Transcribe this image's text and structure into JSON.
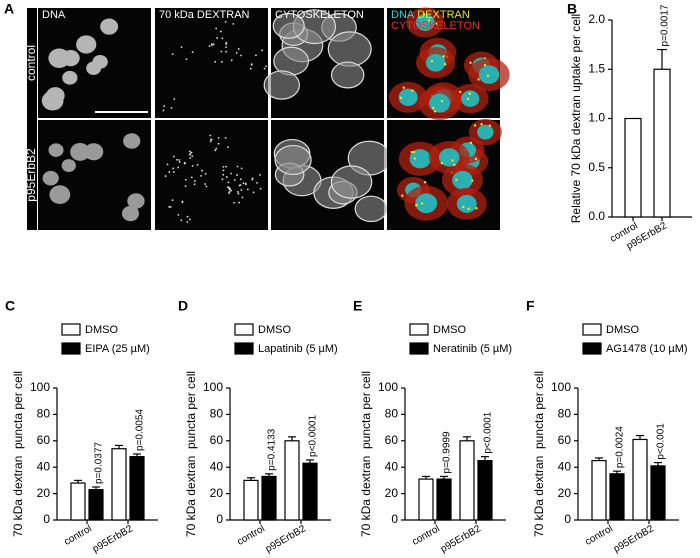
{
  "panel_a": {
    "letter": "A",
    "columns": [
      "DNA",
      "70 kDa DEXTRAN",
      "CYTOSKELETON"
    ],
    "merge_labels": [
      "DNA",
      "DEXTRAN",
      "CYTOSKELETON"
    ],
    "merge_colors": [
      "#3fd0d0",
      "#e8e020",
      "#e83020"
    ],
    "rows": [
      "control",
      "p95ErbB2"
    ]
  },
  "chart_data": [
    {
      "type": "bar",
      "letter": "B",
      "ylabel": "Relative 70 kDa dextran uptake per cell",
      "categories": [
        "control",
        "p95ErbB2"
      ],
      "values": [
        1.0,
        1.5
      ],
      "errors": [
        0,
        0.2
      ],
      "color": "#ffffff",
      "annotation": "p=0.0017",
      "ylim": [
        0,
        2.0
      ],
      "yticks": [
        {
          "value": 0,
          "label": "0.0"
        },
        {
          "value": 0.5,
          "label": "0.5"
        },
        {
          "value": 1.0,
          "label": "1.0"
        },
        {
          "value": 1.5,
          "label": "1.5"
        },
        {
          "value": 2.0,
          "label": "2.0"
        }
      ]
    },
    {
      "type": "grouped_bar",
      "letter": "C",
      "ylabel": "70 kDa dextran  puncta per cell",
      "categories": [
        "control",
        "p95ErbB2"
      ],
      "ylim": [
        0,
        100
      ],
      "yticks": [
        0,
        20,
        40,
        60,
        80,
        100
      ],
      "series": [
        {
          "name": "DMSO",
          "color": "#ffffff",
          "values": [
            28,
            54
          ],
          "errors": [
            2,
            2.5
          ]
        },
        {
          "name": "EIPA (25 µM)",
          "color": "#000000",
          "values": [
            23,
            48
          ],
          "errors": [
            2,
            2
          ],
          "annotations": [
            "p=0.0377",
            "p=0.0054"
          ]
        }
      ]
    },
    {
      "type": "grouped_bar",
      "letter": "D",
      "ylabel": "70 kDa dextran  puncta per cell",
      "categories": [
        "control",
        "p95ErbB2"
      ],
      "ylim": [
        0,
        100
      ],
      "yticks": [
        0,
        20,
        40,
        60,
        80,
        100
      ],
      "series": [
        {
          "name": "DMSO",
          "color": "#ffffff",
          "values": [
            30,
            60
          ],
          "errors": [
            2,
            3
          ]
        },
        {
          "name": "Lapatinib (5 µM)",
          "color": "#000000",
          "values": [
            33,
            43
          ],
          "errors": [
            2,
            2.5
          ],
          "annotations": [
            "p=0.4133",
            "p<0.0001"
          ]
        }
      ]
    },
    {
      "type": "grouped_bar",
      "letter": "E",
      "ylabel": "70 kDa dextran  puncta per cell",
      "categories": [
        "control",
        "p95ErbB2"
      ],
      "ylim": [
        0,
        100
      ],
      "yticks": [
        0,
        20,
        40,
        60,
        80,
        100
      ],
      "series": [
        {
          "name": "DMSO",
          "color": "#ffffff",
          "values": [
            31,
            60
          ],
          "errors": [
            2,
            3
          ]
        },
        {
          "name": "Neratinib (5 µM)",
          "color": "#000000",
          "values": [
            31,
            45
          ],
          "errors": [
            2,
            3
          ],
          "annotations": [
            "p=0.9999",
            "p<0.0001"
          ]
        }
      ]
    },
    {
      "type": "grouped_bar",
      "letter": "F",
      "ylabel": "70 kDa dextran  puncta per cell",
      "categories": [
        "control",
        "p95ErbB2"
      ],
      "ylim": [
        0,
        100
      ],
      "yticks": [
        0,
        20,
        40,
        60,
        80,
        100
      ],
      "series": [
        {
          "name": "DMSO",
          "color": "#ffffff",
          "values": [
            45,
            61
          ],
          "errors": [
            2,
            3
          ]
        },
        {
          "name": "AG1478 (10 µM)",
          "color": "#000000",
          "values": [
            35,
            41
          ],
          "errors": [
            2,
            2.5
          ],
          "annotations": [
            "p=0.0024",
            "p<0.001"
          ]
        }
      ]
    }
  ]
}
